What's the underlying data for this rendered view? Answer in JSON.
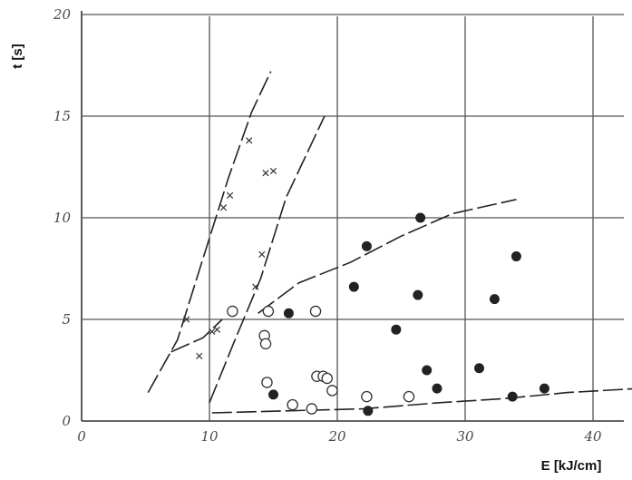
{
  "chart_data": {
    "type": "scatter",
    "xlabel": "E [kJ/cm]",
    "ylabel": "t [s]",
    "xlim": [
      0,
      44
    ],
    "ylim": [
      0,
      20
    ],
    "xticks": [
      0,
      10,
      20,
      30,
      40
    ],
    "yticks": [
      0,
      5,
      10,
      15,
      20
    ],
    "grid": true,
    "series": [
      {
        "marker": "cross",
        "points": [
          [
            8.2,
            5.0
          ],
          [
            9.2,
            3.2
          ],
          [
            10.2,
            4.4
          ],
          [
            10.6,
            4.5
          ],
          [
            11.1,
            10.5
          ],
          [
            11.6,
            11.1
          ],
          [
            13.1,
            13.8
          ],
          [
            13.6,
            6.6
          ],
          [
            14.1,
            8.2
          ],
          [
            14.4,
            12.2
          ],
          [
            15.0,
            12.3
          ]
        ]
      },
      {
        "marker": "open-circle",
        "points": [
          [
            11.8,
            5.4
          ],
          [
            14.3,
            4.2
          ],
          [
            14.4,
            3.8
          ],
          [
            14.6,
            5.4
          ],
          [
            14.5,
            1.9
          ],
          [
            16.5,
            0.8
          ],
          [
            18.0,
            0.6
          ],
          [
            18.3,
            5.4
          ],
          [
            18.4,
            2.2
          ],
          [
            18.9,
            2.2
          ],
          [
            19.2,
            2.1
          ],
          [
            19.6,
            1.5
          ],
          [
            22.3,
            1.2
          ],
          [
            25.6,
            1.2
          ]
        ]
      },
      {
        "marker": "filled-circle",
        "points": [
          [
            15.0,
            1.3
          ],
          [
            16.2,
            5.3
          ],
          [
            21.3,
            6.6
          ],
          [
            22.3,
            8.6
          ],
          [
            22.4,
            0.5
          ],
          [
            24.6,
            4.5
          ],
          [
            26.3,
            6.2
          ],
          [
            26.5,
            10.0
          ],
          [
            27.0,
            2.5
          ],
          [
            27.8,
            1.6
          ],
          [
            31.1,
            2.6
          ],
          [
            32.3,
            6.0
          ],
          [
            33.7,
            1.2
          ],
          [
            34.0,
            8.1
          ],
          [
            36.2,
            1.6
          ]
        ]
      }
    ],
    "trendlines": [
      [
        [
          5.2,
          1.4
        ],
        [
          7.5,
          4.0
        ],
        [
          9.5,
          8.0
        ],
        [
          11.5,
          12.0
        ],
        [
          13.3,
          15.2
        ],
        [
          14.8,
          17.2
        ]
      ],
      [
        [
          7.0,
          3.4
        ],
        [
          9.5,
          4.1
        ],
        [
          11.0,
          5.0
        ]
      ],
      [
        [
          10.0,
          0.9
        ],
        [
          12.0,
          4.0
        ],
        [
          14.0,
          7.0
        ],
        [
          16.0,
          11.0
        ],
        [
          19.0,
          15.0
        ]
      ],
      [
        [
          13.8,
          5.3
        ],
        [
          17.0,
          6.8
        ],
        [
          21.0,
          7.8
        ],
        [
          25.0,
          9.1
        ],
        [
          29.0,
          10.2
        ],
        [
          34.0,
          10.9
        ]
      ],
      [
        [
          10.2,
          0.4
        ],
        [
          16.0,
          0.5
        ],
        [
          22.0,
          0.6
        ],
        [
          28.0,
          0.9
        ],
        [
          33.0,
          1.1
        ],
        [
          38.0,
          1.4
        ],
        [
          43.5,
          1.6
        ]
      ]
    ]
  }
}
